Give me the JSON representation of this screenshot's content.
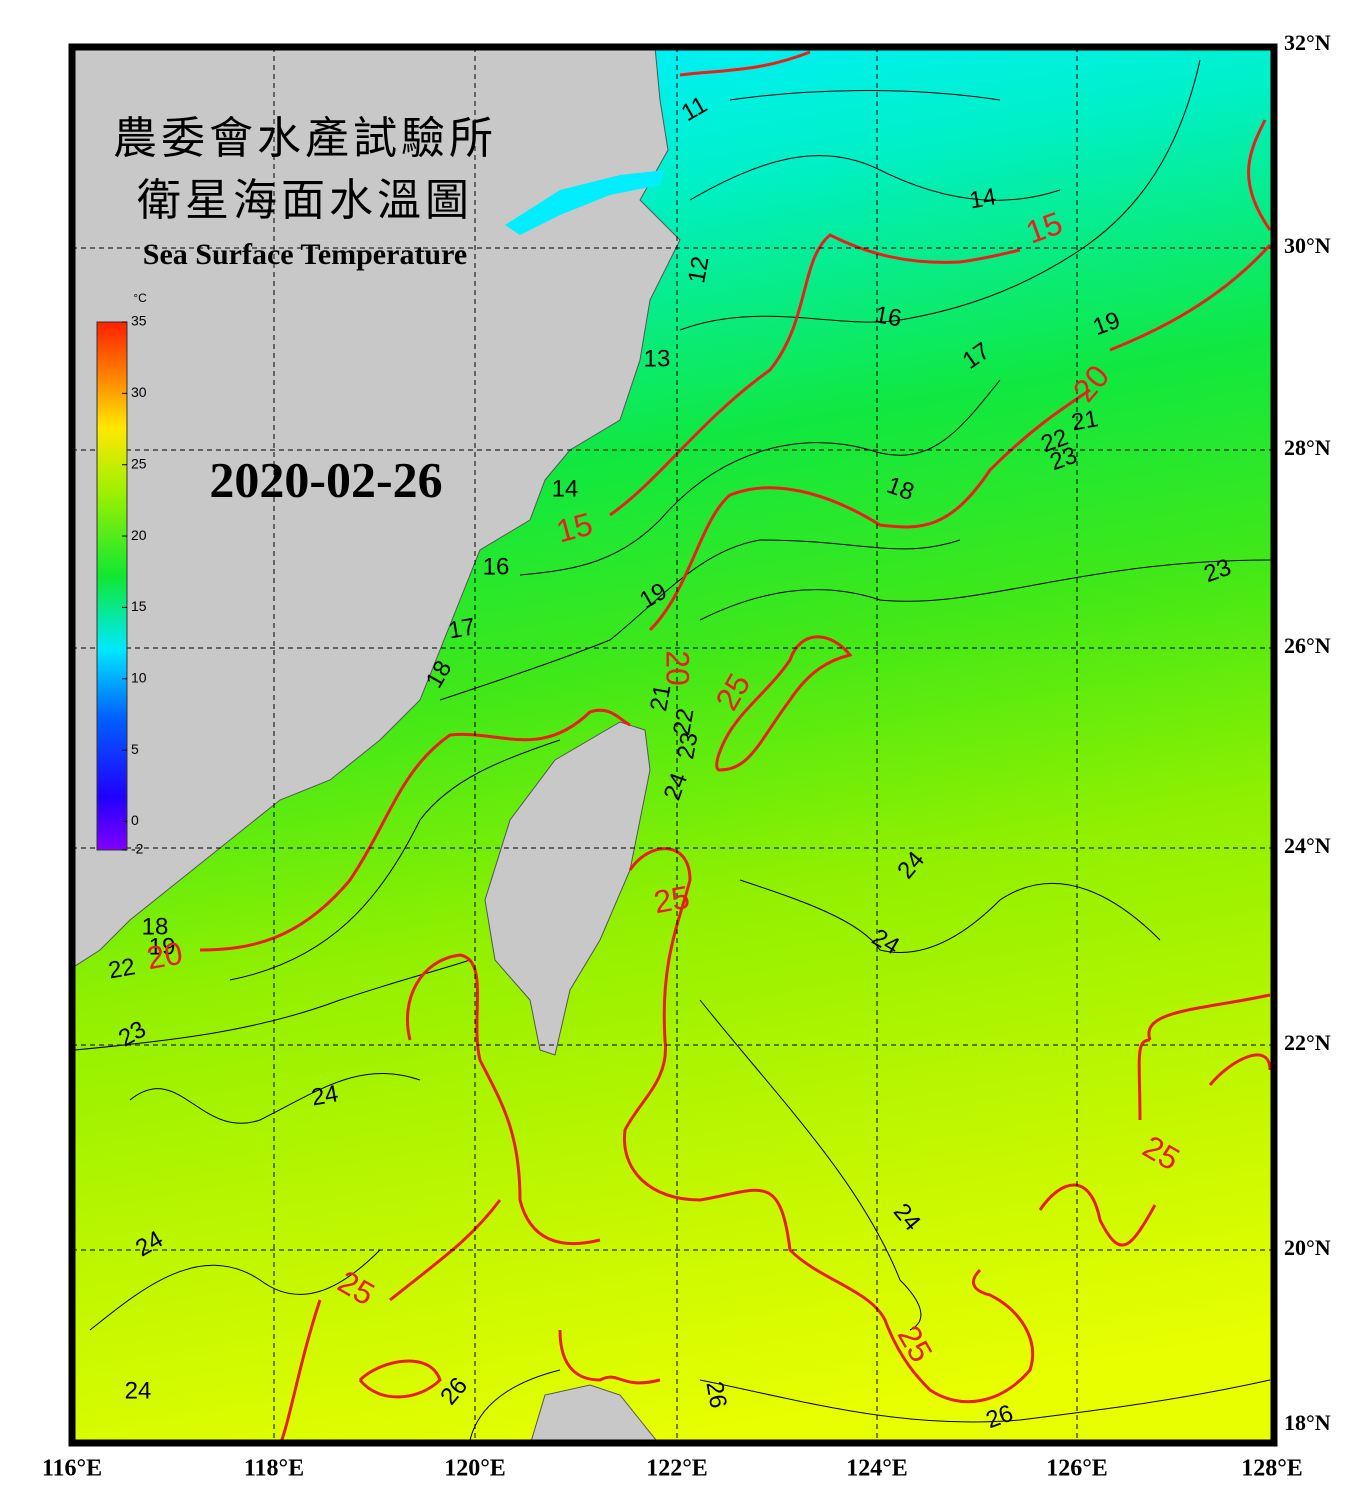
{
  "header": {
    "agency": "農委會水產試驗所",
    "title_zh": "衛星海面水溫圖",
    "title_en": "Sea Surface Temperature",
    "date": "2020-02-26"
  },
  "colorbar": {
    "unit": "°C",
    "range": [
      -2,
      35
    ],
    "ticks": [
      35,
      30,
      25,
      20,
      15,
      10,
      5,
      0,
      -2
    ]
  },
  "latitude_labels": [
    "32°N",
    "30°N",
    "28°N",
    "26°N",
    "24°N",
    "22°N",
    "20°N",
    "18°N"
  ],
  "longitude_labels": [
    "116°E",
    "118°E",
    "120°E",
    "122°E",
    "124°E",
    "126°E",
    "128°E"
  ],
  "contour_labels": {
    "black": [
      "11",
      "14",
      "16",
      "17",
      "19",
      "21",
      "22",
      "23",
      "13",
      "12",
      "14",
      "16",
      "17",
      "18",
      "19",
      "18",
      "21",
      "22",
      "23",
      "24",
      "23",
      "24",
      "24",
      "22",
      "19",
      "18",
      "23",
      "24",
      "24",
      "24",
      "24",
      "26",
      "26",
      "26"
    ],
    "red": [
      "15",
      "20",
      "15",
      "20",
      "25",
      "25",
      "20",
      "25",
      "25",
      "25"
    ]
  }
}
